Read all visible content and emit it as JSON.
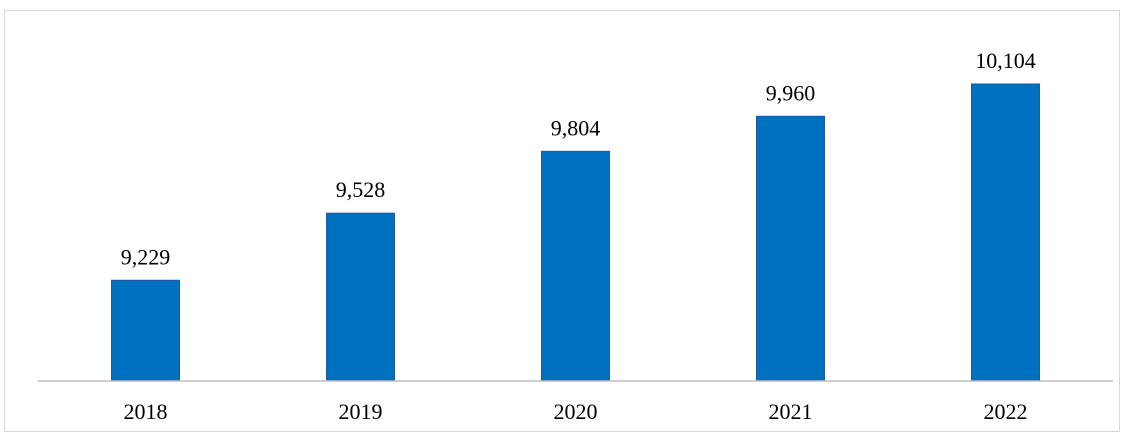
{
  "chart_data": {
    "type": "bar",
    "categories": [
      "2018",
      "2019",
      "2020",
      "2021",
      "2022"
    ],
    "values": [
      9229,
      9528,
      9804,
      9960,
      10104
    ],
    "data_labels": [
      "9,229",
      "9,528",
      "9,804",
      "9,960",
      "10,104"
    ],
    "title": "",
    "xlabel": "",
    "ylabel": "",
    "ylim": [
      8780,
      10300
    ],
    "grid": false,
    "legend": "none",
    "bar_color": "#0070C0",
    "axis_color": "#bfbfbf"
  }
}
